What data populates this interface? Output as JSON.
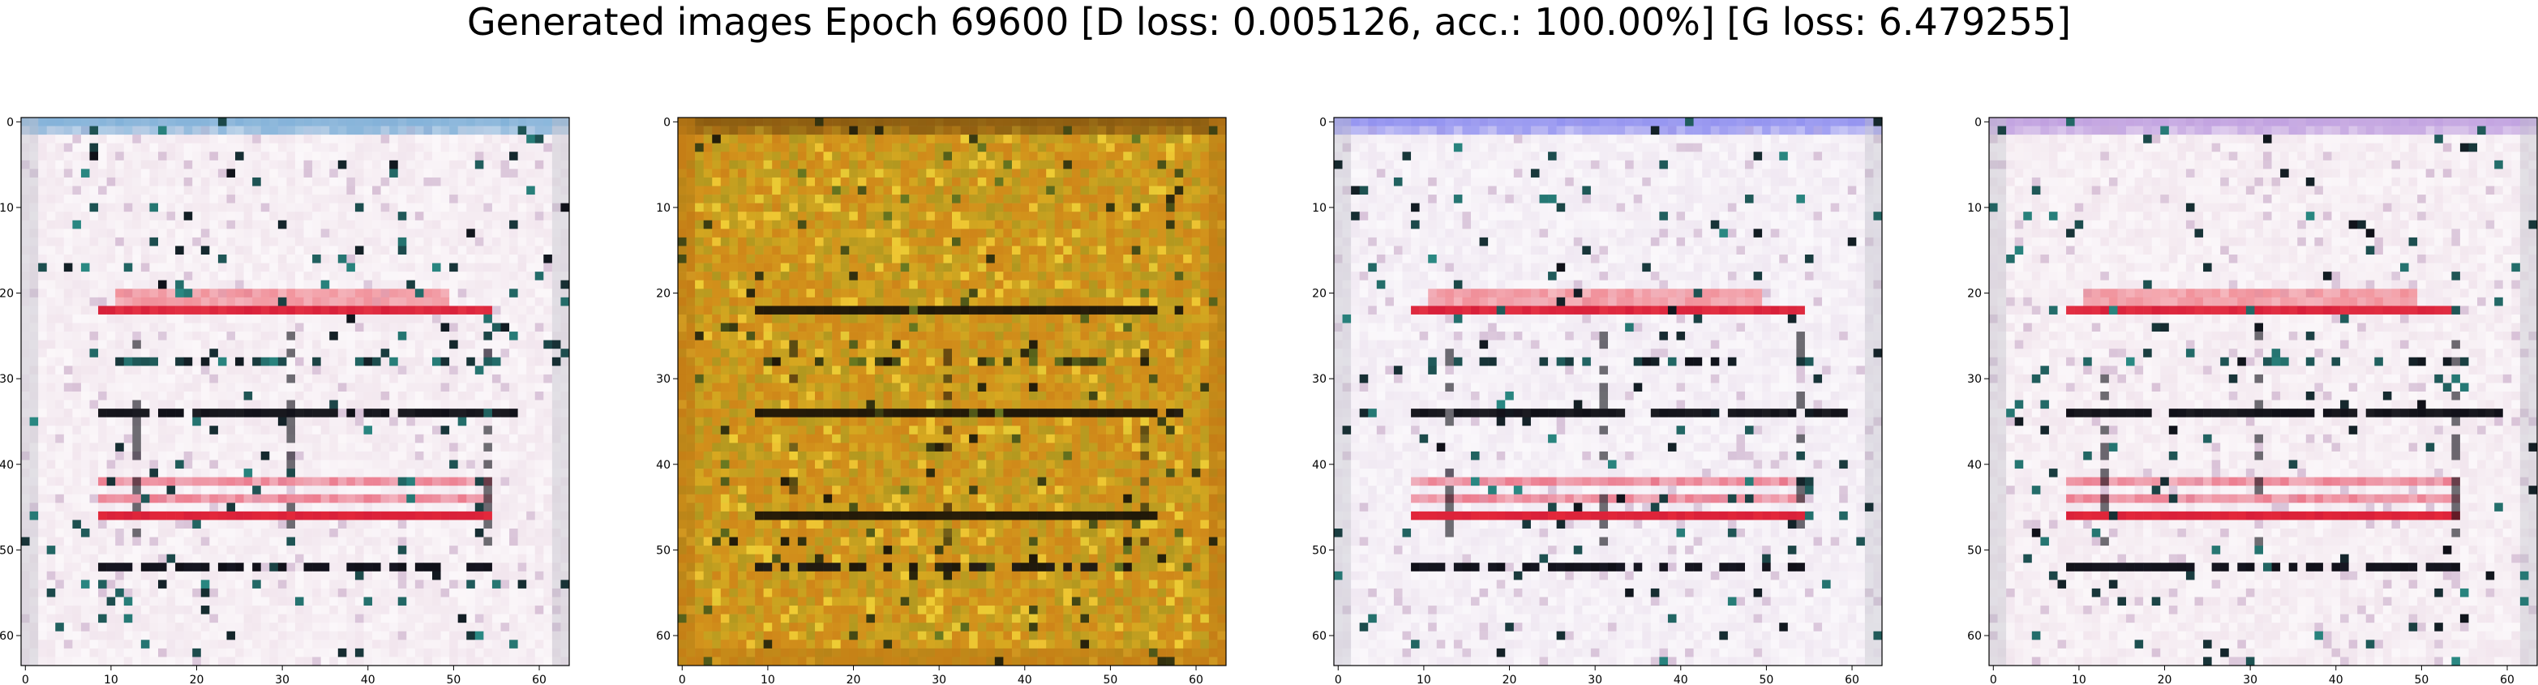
{
  "figure": {
    "title": "Generated images Epoch 69600 [D loss: 0.005126, acc.: 100.00%] [G loss: 6.479255]"
  },
  "panels": [
    {
      "palette": "white-pink",
      "x_ticks": [
        "0",
        "10",
        "20",
        "30",
        "40",
        "50",
        "60"
      ],
      "y_ticks": [
        "0",
        "10",
        "20",
        "30",
        "40",
        "50",
        "60"
      ],
      "colors": {
        "base": "#f2e6ee",
        "stripe_red": "#d8203a",
        "stripe_dark": "#101018",
        "accent": "#2a8a84",
        "top": "#7fb0d8"
      }
    },
    {
      "palette": "yellow-green",
      "x_ticks": [
        "0",
        "10",
        "20",
        "30",
        "40",
        "50",
        "60"
      ],
      "y_ticks": [
        "0",
        "10",
        "20",
        "30",
        "40",
        "50",
        "60"
      ],
      "colors": {
        "base": "#d8a820",
        "stripe_red": "#c06018",
        "stripe_dark": "#201808",
        "accent": "#6a7a20",
        "top": "#8a5a10"
      }
    },
    {
      "palette": "white-pink",
      "x_ticks": [
        "0",
        "10",
        "20",
        "30",
        "40",
        "50",
        "60"
      ],
      "y_ticks": [
        "0",
        "10",
        "20",
        "30",
        "40",
        "50",
        "60"
      ],
      "colors": {
        "base": "#f0e8f2",
        "stripe_red": "#d8203a",
        "stripe_dark": "#101018",
        "accent": "#2a8a84",
        "top": "#9090f0"
      }
    },
    {
      "palette": "white-pink",
      "x_ticks": [
        "0",
        "10",
        "20",
        "30",
        "40",
        "50",
        "60"
      ],
      "y_ticks": [
        "0",
        "10",
        "20",
        "30",
        "40",
        "50",
        "60"
      ],
      "colors": {
        "base": "#f2e6ee",
        "stripe_red": "#d8203a",
        "stripe_dark": "#101018",
        "accent": "#2a8a84",
        "top": "#c0a0e0"
      }
    }
  ]
}
